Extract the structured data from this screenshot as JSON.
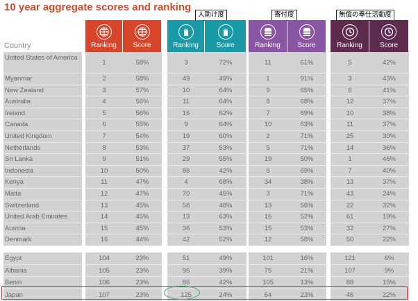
{
  "title": "10 year aggregate scores and ranking",
  "country_header": "Country",
  "callouts": [
    "人助け度",
    "寄付度",
    "無償の奉仕活動度"
  ],
  "groups": [
    {
      "icon": "globe-icon",
      "color": "#d9452a",
      "ranking_label": "Ranking",
      "score_label": "Score"
    },
    {
      "icon": "helping-hand-icon",
      "color": "#1a99a6",
      "ranking_label": "Ranking",
      "score_label": "Score"
    },
    {
      "icon": "coins-icon",
      "color": "#8a55a2",
      "ranking_label": "Ranking",
      "score_label": "Score"
    },
    {
      "icon": "clock-icon",
      "color": "#5e2b4e",
      "ranking_label": "Ranking",
      "score_label": "Score"
    }
  ],
  "chart_data": {
    "type": "table",
    "title": "10 year aggregate scores and ranking",
    "columns": [
      "Country",
      "Ranking",
      "Score",
      "Ranking",
      "Score",
      "Ranking",
      "Score",
      "Ranking",
      "Score"
    ],
    "top_rows": [
      [
        "United States of America",
        "1",
        "58%",
        "3",
        "72%",
        "11",
        "61%",
        "5",
        "42%"
      ],
      [
        "Myanmar",
        "2",
        "58%",
        "49",
        "49%",
        "1",
        "91%",
        "3",
        "43%"
      ],
      [
        "New Zealand",
        "3",
        "57%",
        "10",
        "64%",
        "9",
        "65%",
        "6",
        "41%"
      ],
      [
        "Australia",
        "4",
        "56%",
        "11",
        "64%",
        "8",
        "68%",
        "12",
        "37%"
      ],
      [
        "Ireland",
        "5",
        "56%",
        "16",
        "62%",
        "7",
        "69%",
        "10",
        "38%"
      ],
      [
        "Canada",
        "6",
        "55%",
        "9",
        "64%",
        "10",
        "63%",
        "11",
        "37%"
      ],
      [
        "United Kingdom",
        "7",
        "54%",
        "19",
        "60%",
        "2",
        "71%",
        "25",
        "30%"
      ],
      [
        "Netherlands",
        "8",
        "53%",
        "37",
        "53%",
        "5",
        "71%",
        "14",
        "36%"
      ],
      [
        "Sri Lanka",
        "9",
        "51%",
        "29",
        "55%",
        "19",
        "50%",
        "1",
        "46%"
      ],
      [
        "Indonesia",
        "10",
        "50%",
        "86",
        "42%",
        "6",
        "69%",
        "7",
        "40%"
      ],
      [
        "Kenya",
        "11",
        "47%",
        "4",
        "68%",
        "34",
        "38%",
        "13",
        "37%"
      ],
      [
        "Malta",
        "12",
        "47%",
        "70",
        "45%",
        "3",
        "71%",
        "43",
        "24%"
      ],
      [
        "Switzerland",
        "13",
        "45%",
        "58",
        "48%",
        "13",
        "56%",
        "22",
        "32%"
      ],
      [
        "United Arab Emirates",
        "14",
        "45%",
        "13",
        "63%",
        "16",
        "52%",
        "61",
        "19%"
      ],
      [
        "Austria",
        "15",
        "45%",
        "36",
        "53%",
        "15",
        "53%",
        "32",
        "27%"
      ],
      [
        "Denmark",
        "16",
        "44%",
        "42",
        "52%",
        "12",
        "58%",
        "50",
        "22%"
      ]
    ],
    "bottom_rows": [
      [
        "Egypt",
        "104",
        "23%",
        "51",
        "49%",
        "101",
        "16%",
        "121",
        "6%"
      ],
      [
        "Albania",
        "105",
        "23%",
        "95",
        "39%",
        "75",
        "21%",
        "107",
        "9%"
      ],
      [
        "Benin",
        "106",
        "23%",
        "86",
        "42%",
        "105",
        "13%",
        "88",
        "15%"
      ],
      [
        "Japan",
        "107",
        "23%",
        "125",
        "24%",
        "64",
        "23%",
        "46",
        "22%"
      ]
    ]
  }
}
